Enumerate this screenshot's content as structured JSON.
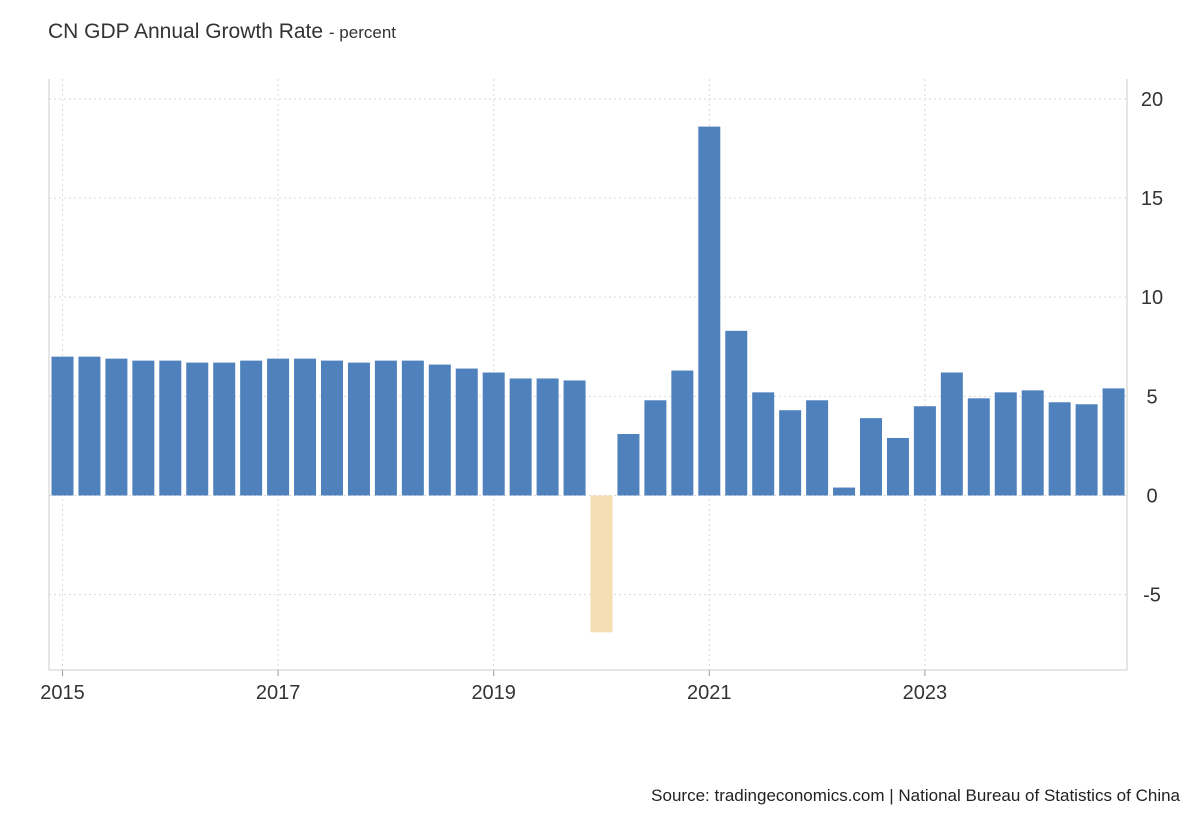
{
  "header": {
    "title": "CN GDP Annual Growth Rate",
    "subtitle": "- percent"
  },
  "footer": {
    "source": "Source: tradingeconomics.com | National Bureau of Statistics of China"
  },
  "chart_data": {
    "type": "bar",
    "title": "CN GDP Annual Growth Rate",
    "ylabel": "percent",
    "xlabel": "",
    "ylim": [
      -8.8,
      21
    ],
    "yticks": [
      20,
      15,
      10,
      5,
      0,
      -5
    ],
    "xtick_labels": [
      "2015",
      "2017",
      "2019",
      "2021",
      "2023"
    ],
    "y_axis_position": "right",
    "grid": true,
    "colors": {
      "positive": "#4f81bd",
      "negative": "#f5deb3",
      "grid": "#d9d9d9",
      "axis": "#cccccc"
    },
    "categories": [
      "2015 Q1",
      "2015 Q2",
      "2015 Q3",
      "2015 Q4",
      "2016 Q1",
      "2016 Q2",
      "2016 Q3",
      "2016 Q4",
      "2017 Q1",
      "2017 Q2",
      "2017 Q3",
      "2017 Q4",
      "2018 Q1",
      "2018 Q2",
      "2018 Q3",
      "2018 Q4",
      "2019 Q1",
      "2019 Q2",
      "2019 Q3",
      "2019 Q4",
      "2020 Q1",
      "2020 Q2",
      "2020 Q3",
      "2020 Q4",
      "2021 Q1",
      "2021 Q2",
      "2021 Q3",
      "2021 Q4",
      "2022 Q1",
      "2022 Q2",
      "2022 Q3",
      "2022 Q4",
      "2023 Q1",
      "2023 Q2",
      "2023 Q3",
      "2023 Q4",
      "2024 Q1",
      "2024 Q2",
      "2024 Q3",
      "2024 Q4"
    ],
    "values": [
      7.0,
      7.0,
      6.9,
      6.8,
      6.8,
      6.7,
      6.7,
      6.8,
      6.9,
      6.9,
      6.8,
      6.7,
      6.8,
      6.8,
      6.6,
      6.4,
      6.2,
      5.9,
      5.9,
      5.8,
      -6.9,
      3.1,
      4.8,
      6.3,
      18.6,
      8.3,
      5.2,
      4.3,
      4.8,
      0.4,
      3.9,
      2.9,
      4.5,
      6.2,
      4.9,
      5.2,
      5.3,
      4.7,
      4.6,
      5.4
    ]
  }
}
